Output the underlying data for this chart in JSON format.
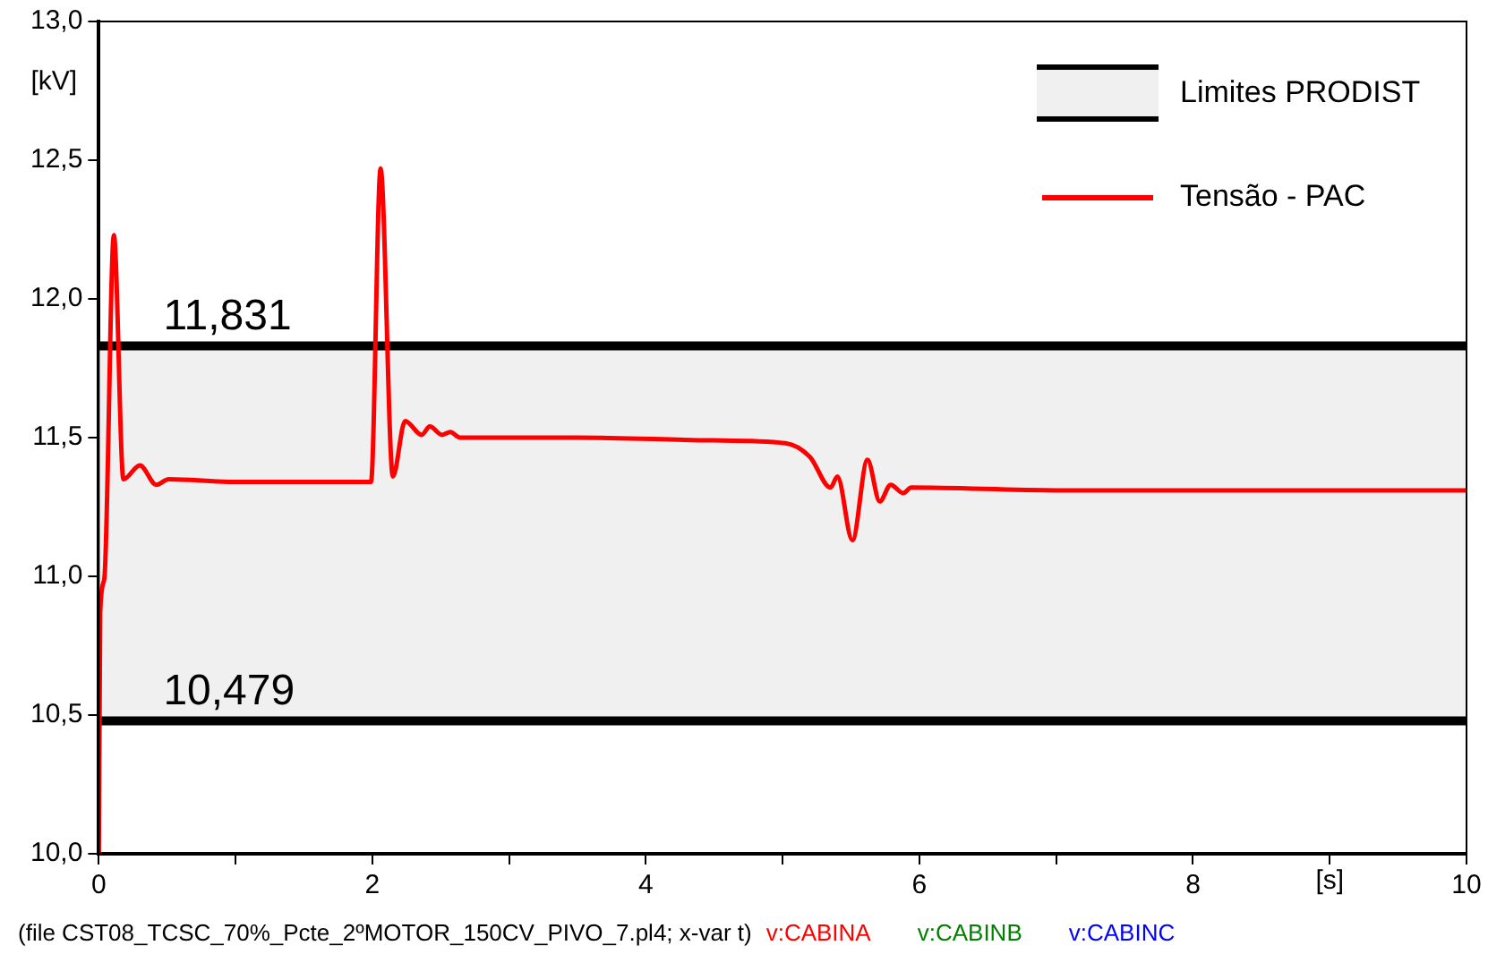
{
  "chart_data": {
    "type": "line",
    "xlabel": "[s]",
    "ylabel": "[kV]",
    "xlim": [
      0,
      10
    ],
    "ylim": [
      10,
      13
    ],
    "xticks": [
      0,
      {
        "value": 1,
        "label": null
      },
      2,
      {
        "value": 3,
        "label": null
      },
      4,
      {
        "value": 5,
        "label": null
      },
      6,
      {
        "value": 7,
        "label": null
      },
      8,
      {
        "value": 9,
        "label": null
      },
      10
    ],
    "yticks": [
      {
        "value": 10,
        "label": "10,0"
      },
      {
        "value": 10.5,
        "label": "10,5"
      },
      {
        "value": 11,
        "label": "11,0"
      },
      {
        "value": 11.5,
        "label": "11,5"
      },
      {
        "value": 12,
        "label": "12,0"
      },
      {
        "value": 12.5,
        "label": "12,5"
      },
      {
        "value": 13,
        "label": "13,0"
      }
    ],
    "series": [
      {
        "name": "Tensão - PAC",
        "color": "#ff0000",
        "x": [
          0,
          0.01,
          0.04,
          0.11,
          0.18,
          0.3,
          0.42,
          0.51,
          1.0,
          1.99,
          2.06,
          2.15,
          2.24,
          2.36,
          2.42,
          2.51,
          2.57,
          2.64,
          3.5,
          4.49,
          5.02,
          5.2,
          5.35,
          5.4,
          5.51,
          5.62,
          5.71,
          5.79,
          5.88,
          5.94,
          7,
          10
        ],
        "values": [
          10.0,
          10.87,
          10.99,
          12.23,
          11.35,
          11.4,
          11.33,
          11.35,
          11.34,
          11.34,
          12.47,
          11.36,
          11.56,
          11.51,
          11.54,
          11.51,
          11.52,
          11.5,
          11.5,
          11.49,
          11.48,
          11.43,
          11.32,
          11.36,
          11.13,
          11.42,
          11.27,
          11.33,
          11.3,
          11.32,
          11.31,
          11.31
        ]
      }
    ],
    "bands": [
      {
        "axis": "y",
        "from": 10.479,
        "to": 11.831,
        "label": "Limites PRODIST",
        "color": "#f0f0f0"
      }
    ],
    "ref_lines": [
      {
        "axis": "y",
        "value": 11.831,
        "label": "11,831",
        "color": "#000000"
      },
      {
        "axis": "y",
        "value": 10.479,
        "label": "10,479",
        "color": "#000000"
      }
    ],
    "legend": "top right",
    "grid": false,
    "marker": "none",
    "line_style": "solid",
    "annotations": [
      "(file CST08_TCSC_70%_Pcte_2ºMOTOR_150CV_PIVO_7.pl4; x-var t)",
      "v:CABINA",
      "v:CABINB",
      "v:CABINC"
    ]
  }
}
